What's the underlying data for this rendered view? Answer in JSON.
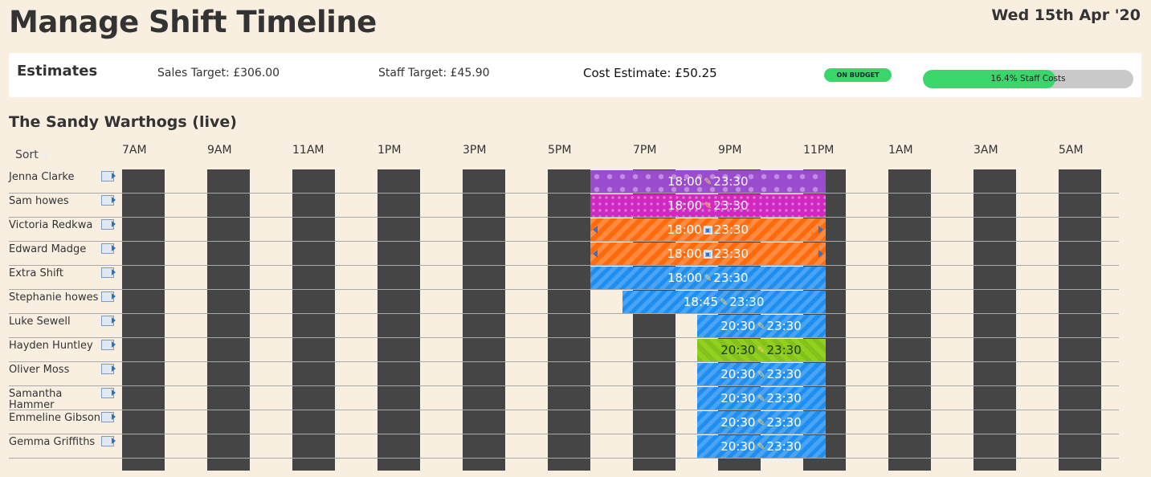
{
  "page": {
    "title": "Manage Shift Timeline",
    "date": "Wed 15th Apr '20"
  },
  "estimates": {
    "title": "Estimates",
    "sales_target": "Sales Target: £306.00",
    "staff_target": "Staff Target: £45.90",
    "cost_estimate": "Cost Estimate: £50.25",
    "budget_status": "ON BUDGET",
    "staff_cost_label": "16.4% Staff Costs",
    "staff_cost_fill_percent": 63,
    "colors": {
      "badge": "#3bd66b",
      "progress_fill": "#3bd66b",
      "progress_track": "#c9c9c9"
    }
  },
  "team": {
    "name": "The Sandy Warthogs (live)"
  },
  "sort": {
    "label": "Sort"
  },
  "hours": [
    "7AM",
    "9AM",
    "11AM",
    "1PM",
    "3PM",
    "5PM",
    "7PM",
    "9PM",
    "11PM",
    "1AM",
    "3AM",
    "5AM"
  ],
  "staff": [
    {
      "name": "Jenna Clarke",
      "start": "18:00",
      "end": "23:30",
      "start_h": 18,
      "end_h": 23.5,
      "style": "p-dots-purple",
      "icon": "pencil-icon"
    },
    {
      "name": "Sam howes",
      "start": "18:00",
      "end": "23:30",
      "start_h": 18,
      "end_h": 23.5,
      "style": "p-dots-magenta",
      "icon": "pencil-icon"
    },
    {
      "name": "Victoria Redkwa",
      "start": "18:00",
      "end": "23:30",
      "start_h": 18,
      "end_h": 23.5,
      "style": "p-orange",
      "icon": "save-icon",
      "resize_arrows": true
    },
    {
      "name": "Edward Madge",
      "start": "18:00",
      "end": "23:30",
      "start_h": 18,
      "end_h": 23.5,
      "style": "p-orange",
      "icon": "save-icon",
      "resize_arrows": true
    },
    {
      "name": "Extra Shift",
      "start": "18:00",
      "end": "23:30",
      "start_h": 18,
      "end_h": 23.5,
      "style": "p-blue",
      "icon": "pencil-icon"
    },
    {
      "name": "Stephanie howes",
      "start": "18:45",
      "end": "23:30",
      "start_h": 18.75,
      "end_h": 23.5,
      "style": "p-blue",
      "icon": "pencil-icon"
    },
    {
      "name": "Luke Sewell",
      "start": "20:30",
      "end": "23:30",
      "start_h": 20.5,
      "end_h": 23.5,
      "style": "p-blue",
      "icon": "pencil-icon"
    },
    {
      "name": "Hayden Huntley",
      "start": "20:30",
      "end": "23:30",
      "start_h": 20.5,
      "end_h": 23.5,
      "style": "p-green",
      "icon": "pencil-icon"
    },
    {
      "name": "Oliver Moss",
      "start": "20:30",
      "end": "23:30",
      "start_h": 20.5,
      "end_h": 23.5,
      "style": "p-blue",
      "icon": "pencil-icon"
    },
    {
      "name": "Samantha Hammer",
      "start": "20:30",
      "end": "23:30",
      "start_h": 20.5,
      "end_h": 23.5,
      "style": "p-blue",
      "icon": "pencil-icon"
    },
    {
      "name": "Emmeline Gibson",
      "start": "20:30",
      "end": "23:30",
      "start_h": 20.5,
      "end_h": 23.5,
      "style": "p-blue",
      "icon": "pencil-icon"
    },
    {
      "name": "Gemma Griffiths",
      "start": "20:30",
      "end": "23:30",
      "start_h": 20.5,
      "end_h": 23.5,
      "style": "p-blue",
      "icon": "pencil-icon"
    }
  ]
}
